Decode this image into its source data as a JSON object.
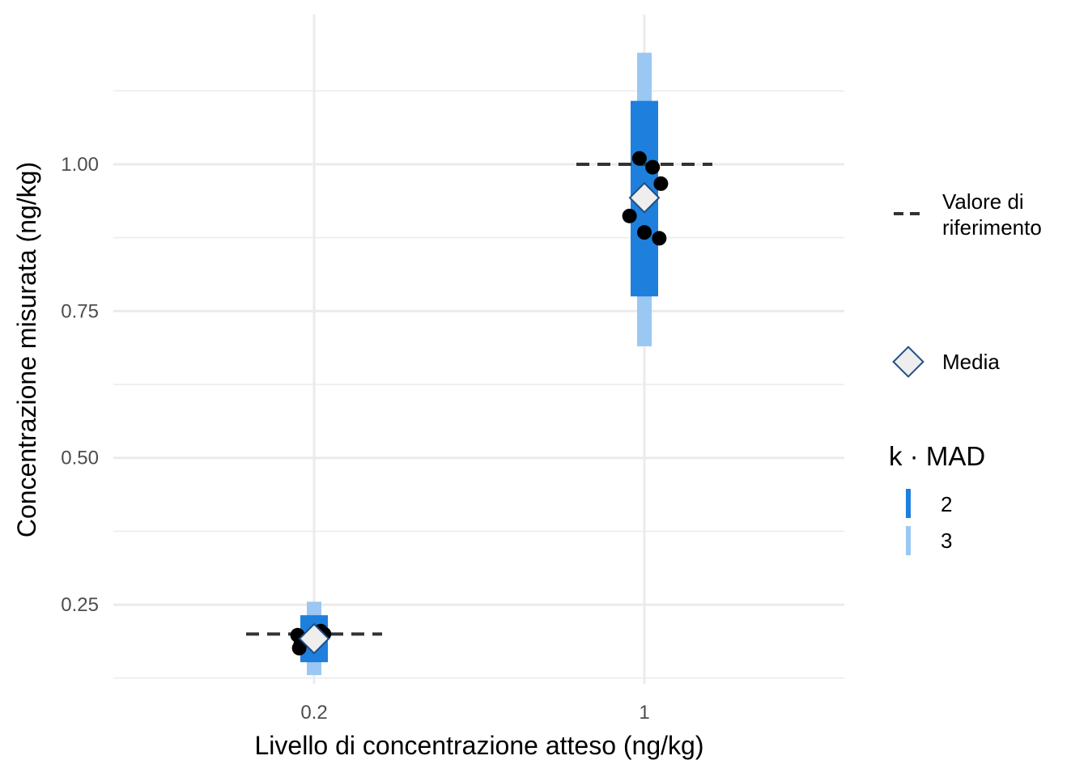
{
  "chart_data": {
    "type": "scatter",
    "xlabel": "Livello di concentrazione atteso (ng/kg)",
    "ylabel": "Concentrazione misurata (ng/kg)",
    "categories": [
      "0.2",
      "1"
    ],
    "ylim": [
      0.115,
      1.255
    ],
    "yticks": [
      0.25,
      0.5,
      0.75,
      1.0
    ],
    "ytick_labels": [
      "0.25",
      "0.50",
      "0.75",
      "1.00"
    ],
    "grid": true,
    "legend_position": "right",
    "reference_values": [
      0.2,
      1.0
    ],
    "means": [
      0.192,
      0.943
    ],
    "intervals": {
      "k2": [
        [
          0.152,
          0.232
        ],
        [
          0.775,
          1.108
        ]
      ],
      "k3": [
        [
          0.13,
          0.255
        ],
        [
          0.69,
          1.19
        ]
      ]
    },
    "points": [
      [
        {
          "x_offset": -0.05,
          "y": 0.198
        },
        {
          "x_offset": -0.04,
          "y": 0.185
        },
        {
          "x_offset": -0.045,
          "y": 0.176
        },
        {
          "x_offset": 0.02,
          "y": 0.205
        },
        {
          "x_offset": 0.03,
          "y": 0.2
        },
        {
          "x_offset": -0.02,
          "y": 0.19
        }
      ],
      [
        {
          "x_offset": -0.015,
          "y": 1.01
        },
        {
          "x_offset": 0.025,
          "y": 0.995
        },
        {
          "x_offset": 0.05,
          "y": 0.967
        },
        {
          "x_offset": -0.045,
          "y": 0.912
        },
        {
          "x_offset": 0.0,
          "y": 0.884
        },
        {
          "x_offset": 0.045,
          "y": 0.874
        }
      ]
    ],
    "colors": {
      "k2": "#1e7fdc",
      "k3": "#9ac8f2",
      "reference_line": "#333333",
      "points": "#000000",
      "mean_fill": "#eeeeee",
      "mean_stroke": "#1f4e85",
      "grid": "#ebebeb"
    },
    "legend": {
      "reference_label_line1": "Valore di",
      "reference_label_line2": "riferimento",
      "mean_label": "Media",
      "mad_title": "k · MAD",
      "mad_items": [
        "2",
        "3"
      ]
    }
  }
}
